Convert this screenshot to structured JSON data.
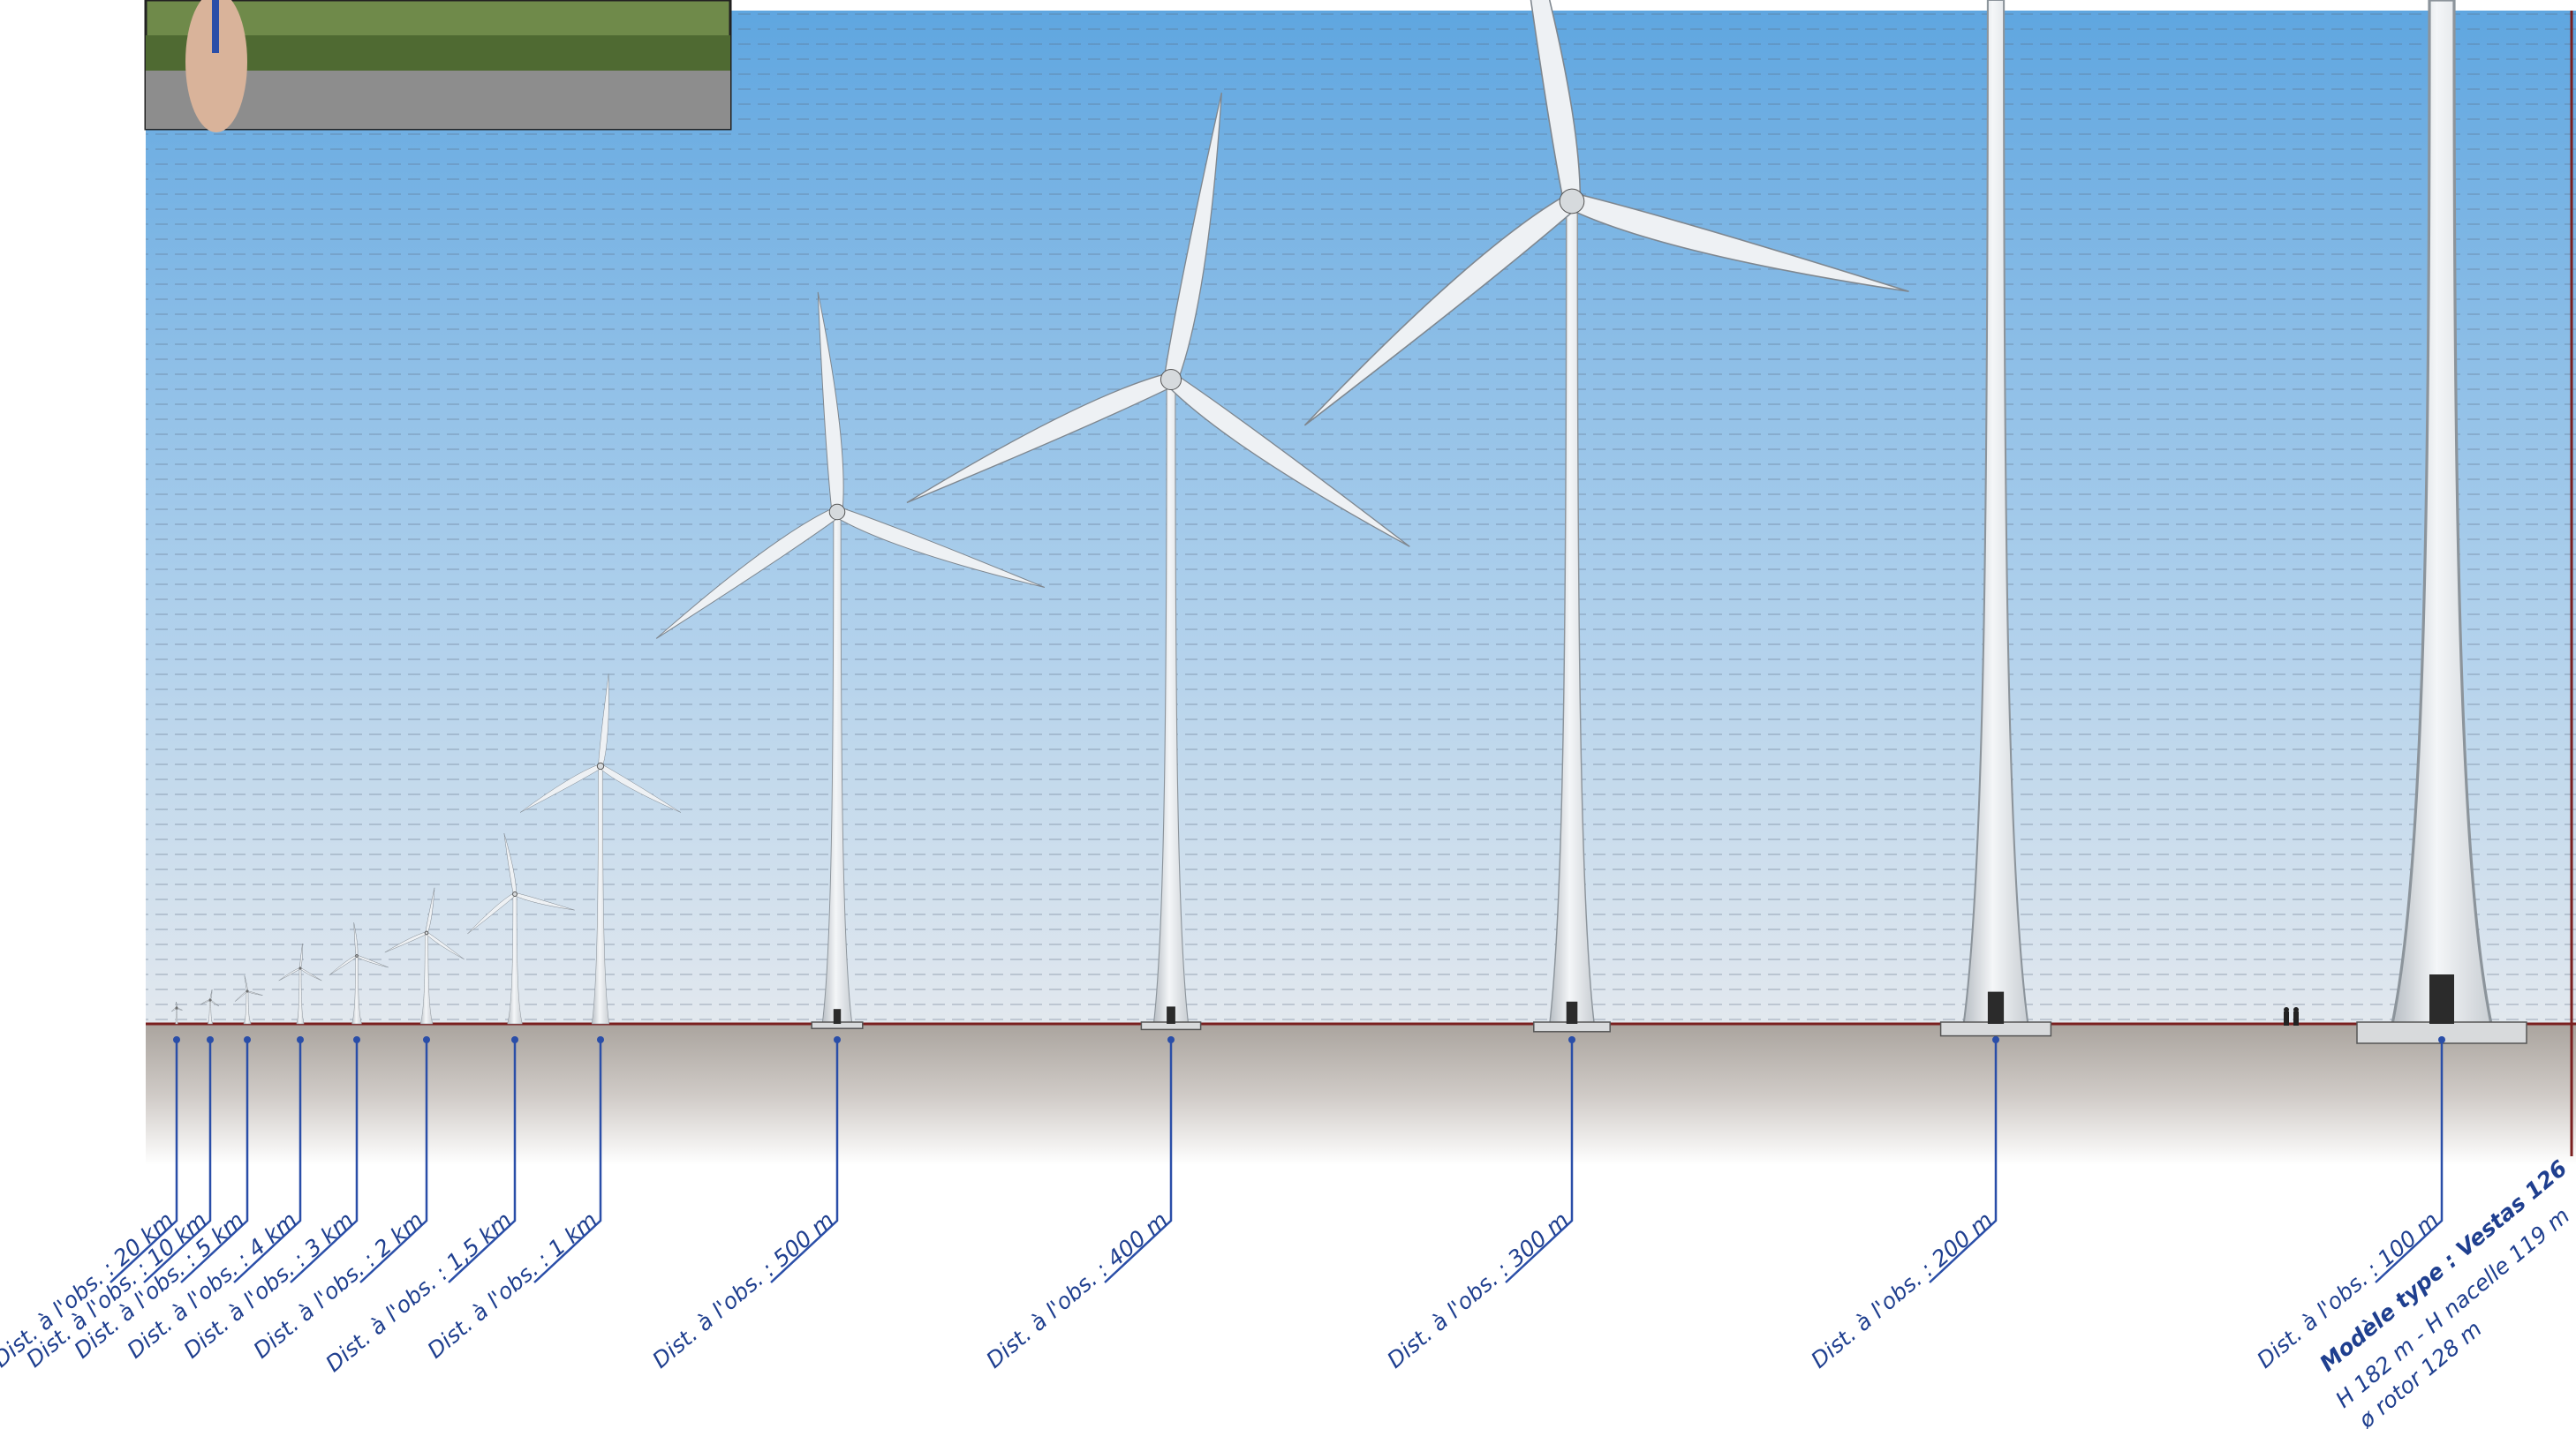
{
  "figure": {
    "colors": {
      "sky_top": "#5fa6e0",
      "sky_mid": "#a9cdeb",
      "sky_horizon": "#e2e8ee",
      "ground": "#b9b3ad",
      "horizon_line": "#7a1f1f",
      "leader": "#2a4ea8",
      "label_text": "#1f3f8f",
      "turbine": "#e6e9ec",
      "turbine_shadow": "#9aa1a8"
    },
    "turbines": [
      {
        "label": "Dist. à l'obs. : 20 km"
      },
      {
        "label": "Dist. à l'obs. : 10 km"
      },
      {
        "label": "Dist. à l'obs. : 5 km"
      },
      {
        "label": "Dist. à l'obs. : 4 km"
      },
      {
        "label": "Dist. à l'obs. : 3 km"
      },
      {
        "label": "Dist. à l'obs. : 2 km"
      },
      {
        "label": "Dist. à l'obs. : 1,5 km"
      },
      {
        "label": "Dist. à l'obs. : 1  km"
      },
      {
        "label": "Dist. à l'obs. : 500 m"
      },
      {
        "label": "Dist. à l'obs. : 400 m"
      },
      {
        "label": "Dist. à l'obs. : 300 m"
      },
      {
        "label": "Dist. à l'obs. : 200 m"
      },
      {
        "label": "Dist. à l'obs. : 100 m"
      }
    ],
    "model_spec": {
      "model": "Modèle type : Vestas 126",
      "dimensions": "H 182 m - H nacelle 119 m",
      "rotor": "ø rotor 128 m"
    }
  }
}
